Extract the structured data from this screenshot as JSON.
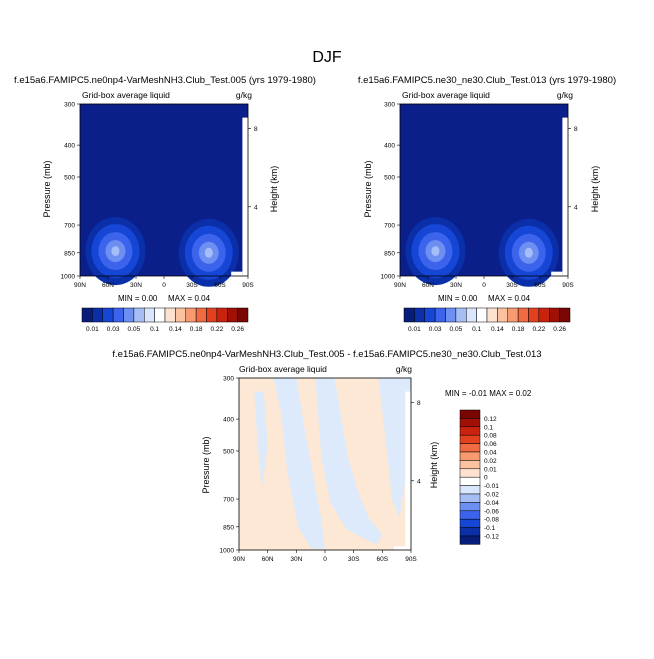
{
  "page": {
    "title": "DJF"
  },
  "chart_data": [
    {
      "type": "heatmap",
      "title": "f.e15a6.FAMIPC5.ne0np4-VarMeshNH3.Club_Test.005 (yrs 1979-1980)",
      "subtitle_left": "Grid-box average liquid",
      "units": "g/kg",
      "ylabel": "Pressure (mb)",
      "ylabel_right": "Height (km)",
      "x_ticks": [
        "90N",
        "60N",
        "30N",
        "0",
        "30S",
        "60S",
        "90S"
      ],
      "y_ticks": [
        "300",
        "400",
        "500",
        "700",
        "850",
        "1000"
      ],
      "height_ticks": [
        "8",
        "4"
      ],
      "min_text": "MIN =   0.00",
      "max_text": "MAX =   0.04",
      "features": [
        {
          "lat": 52,
          "p": 840,
          "value": 0.04
        },
        {
          "lat": -48,
          "p": 850,
          "value": 0.04
        }
      ]
    },
    {
      "type": "heatmap",
      "title": "f.e15a6.FAMIPC5.ne30_ne30.Club_Test.013 (yrs 1979-1980)",
      "subtitle_left": "Grid-box average liquid",
      "units": "g/kg",
      "ylabel": "Pressure (mb)",
      "ylabel_right": "Height (km)",
      "x_ticks": [
        "90N",
        "60N",
        "30N",
        "0",
        "30S",
        "60S",
        "90S"
      ],
      "y_ticks": [
        "300",
        "400",
        "500",
        "700",
        "850",
        "1000"
      ],
      "height_ticks": [
        "8",
        "4"
      ],
      "min_text": "MIN =   0.00",
      "max_text": "MAX =   0.04",
      "features": [
        {
          "lat": 52,
          "p": 840,
          "value": 0.04
        },
        {
          "lat": -48,
          "p": 850,
          "value": 0.04
        }
      ]
    },
    {
      "type": "heatmap",
      "title": "f.e15a6.FAMIPC5.ne0np4-VarMeshNH3.Club_Test.005 - f.e15a6.FAMIPC5.ne30_ne30.Club_Test.013",
      "subtitle_left": "Grid-box average liquid",
      "units": "g/kg",
      "ylabel": "Pressure (mb)",
      "ylabel_right": "Height (km)",
      "x_ticks": [
        "90N",
        "60N",
        "30N",
        "0",
        "30S",
        "60S",
        "90S"
      ],
      "y_ticks": [
        "300",
        "400",
        "500",
        "700",
        "850",
        "1000"
      ],
      "height_ticks": [
        "8",
        "4"
      ],
      "minmax_text": "MIN =  -0.01   MAX =   0.02"
    }
  ],
  "colorbar_top": {
    "labels": [
      "0.01",
      "0.03",
      "0.05",
      "0.1",
      "0.14",
      "0.18",
      "0.22",
      "0.26"
    ],
    "colors": [
      "#081d7a",
      "#0a2fa8",
      "#1546d6",
      "#3b63ec",
      "#6e8ff2",
      "#a7bdf6",
      "#d9e6fb",
      "#ffffff",
      "#fde3cf",
      "#fbc2a0",
      "#f79a70",
      "#f06a42",
      "#e3401f",
      "#c9220f",
      "#a11006",
      "#7a0603"
    ]
  },
  "colorbar_diff": {
    "labels": [
      "0.12",
      "0.1",
      "0.08",
      "0.06",
      "0.04",
      "0.02",
      "0.01",
      "0",
      "-0.01",
      "-0.02",
      "-0.04",
      "-0.06",
      "-0.08",
      "-0.1",
      "-0.12"
    ],
    "colors": [
      "#7a0603",
      "#a11006",
      "#c9220f",
      "#e3401f",
      "#f06a42",
      "#f79a70",
      "#fbc2a0",
      "#fde3cf",
      "#ffffff",
      "#d9e6fb",
      "#a7bdf6",
      "#6e8ff2",
      "#3b63ec",
      "#1546d6",
      "#0a2fa8",
      "#081d7a"
    ]
  },
  "colors": {
    "field_base": "#0b1f8a",
    "diff_pos": "#fde8d6",
    "diff_neg": "#dceafb"
  }
}
